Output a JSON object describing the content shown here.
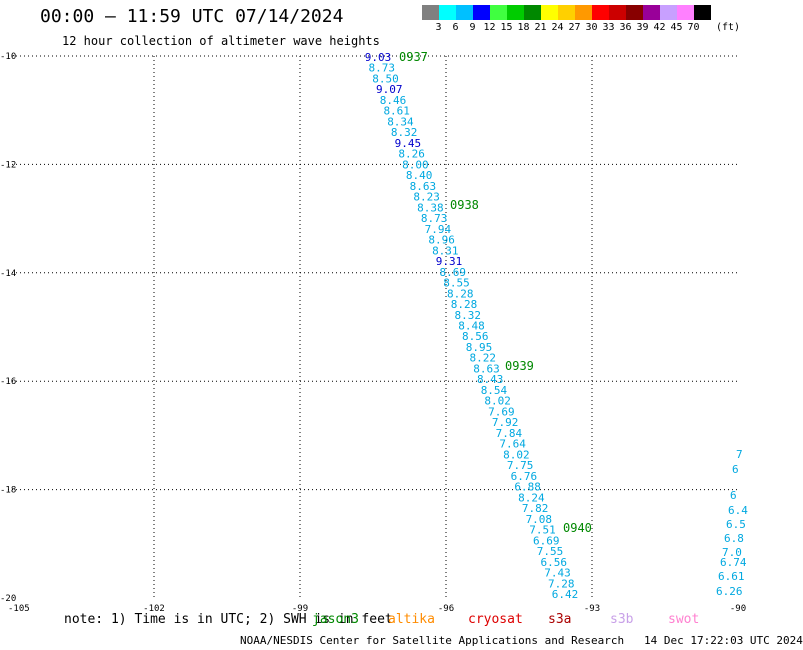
{
  "title": "00:00 – 11:59 UTC 07/14/2024",
  "subtitle": "12 hour collection of altimeter wave heights",
  "footer": "NOAA/NESDIS Center for Satellite Applications and Research   14 Dec 17:22:03 UTC 2024",
  "note": "note: 1) Time is in UTC; 2) SWH is in feet",
  "satellites": [
    {
      "label": "jason3",
      "color": "#008800"
    },
    {
      "label": "altika",
      "color": "#ff8c00"
    },
    {
      "label": "cryosat",
      "color": "#dd0000"
    },
    {
      "label": "s3a",
      "color": "#aa0000"
    },
    {
      "label": "s3b",
      "color": "#c8a0e8"
    },
    {
      "label": "swot",
      "color": "#ff80d0"
    }
  ],
  "legend": {
    "units": "(ft)",
    "bins": [
      {
        "label": "3",
        "color": "#808080"
      },
      {
        "label": "6",
        "color": "#00ffff"
      },
      {
        "label": "9",
        "color": "#00c0ff"
      },
      {
        "label": "12",
        "color": "#0000ff"
      },
      {
        "label": "15",
        "color": "#40ff40"
      },
      {
        "label": "18",
        "color": "#00cc00"
      },
      {
        "label": "21",
        "color": "#008800"
      },
      {
        "label": "24",
        "color": "#ffff00"
      },
      {
        "label": "27",
        "color": "#ffd000"
      },
      {
        "label": "30",
        "color": "#ff9900"
      },
      {
        "label": "33",
        "color": "#ff0000"
      },
      {
        "label": "36",
        "color": "#cc0000"
      },
      {
        "label": "39",
        "color": "#880000"
      },
      {
        "label": "42",
        "color": "#990099"
      },
      {
        "label": "45",
        "color": "#c8a0ff"
      },
      {
        "label": "70",
        "color": "#ff80ff"
      },
      {
        "label": "",
        "color": "#000000"
      }
    ]
  },
  "map": {
    "lon_ticks": [
      "-105",
      "-102",
      "-99",
      "-96",
      "-93",
      "-90"
    ],
    "lat_ticks": [
      "-10",
      "-12",
      "-14",
      "-16",
      "-18",
      "-20"
    ],
    "lon_range": [
      -105,
      -90
    ],
    "lat_range": [
      -20,
      -10
    ]
  },
  "track_main": {
    "color": "#00a8e0",
    "high_color": "#0000cc",
    "values": [
      "9.03",
      "8.73",
      "8.50",
      "9.07",
      "8.46",
      "8.61",
      "8.34",
      "8.32",
      "9.45",
      "8.26",
      "8.00",
      "8.40",
      "8.63",
      "8.23",
      "8.38",
      "8.73",
      "7.94",
      "8.96",
      "8.31",
      "9.31",
      "8.69",
      "8.55",
      "8.28",
      "8.28",
      "8.32",
      "8.48",
      "8.56",
      "8.95",
      "8.22",
      "8.63",
      "8.43",
      "8.54",
      "8.02",
      "7.69",
      "7.92",
      "7.84",
      "7.64",
      "8.02",
      "7.75",
      "6.76",
      "6.88",
      "8.24",
      "7.82",
      "7.08",
      "7.51",
      "6.69",
      "7.55",
      "6.56",
      "7.43",
      "7.28",
      "6.42"
    ]
  },
  "time_labels": [
    "0937",
    "0938",
    "0939",
    "0940"
  ],
  "track_right": {
    "values": [
      "7",
      "6",
      "6",
      "6.4",
      "6.5",
      "6.8",
      "7.0",
      "6.74",
      "6.61",
      "6.26"
    ]
  }
}
